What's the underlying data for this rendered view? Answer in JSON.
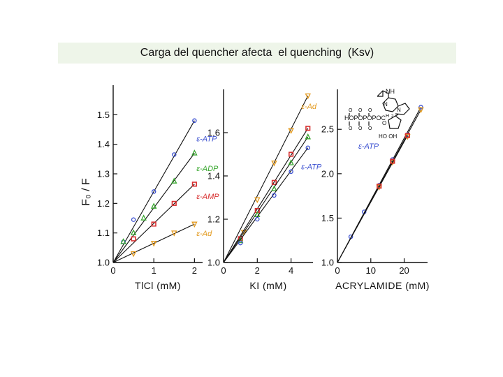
{
  "slide": {
    "title": "Carga del quencher afecta  el quenching  (Ksv)"
  },
  "y_axis_label_common": "F₀ / F",
  "chart_data": [
    {
      "type": "line",
      "panel": "left",
      "xlabel": "TlCl (mM)",
      "ylabel": "F₀ / F",
      "xlim": [
        0,
        2.2
      ],
      "ylim": [
        1.0,
        1.6
      ],
      "xticks": [
        0,
        1,
        2
      ],
      "xtick_labels": [
        "0",
        "1",
        "2"
      ],
      "yticks": [
        1.0,
        1.1,
        1.2,
        1.3,
        1.4,
        1.5
      ],
      "ytick_labels": [
        "1.0",
        "1.1",
        "1.2",
        "1.3",
        "1.4",
        "1.5"
      ],
      "series": [
        {
          "name": "ε-ATP",
          "color": "#3a4fd0",
          "marker": "circle",
          "label_at": [
            2.05,
            1.41
          ],
          "x": [
            0.25,
            0.5,
            1.0,
            1.5,
            2.0
          ],
          "y": [
            1.07,
            1.145,
            1.24,
            1.365,
            1.48
          ]
        },
        {
          "name": "ε-ADP",
          "color": "#3aa830",
          "marker": "triangle-up",
          "label_at": [
            2.05,
            1.31
          ],
          "x": [
            0.25,
            0.5,
            0.75,
            1.0,
            1.5,
            2.0
          ],
          "y": [
            1.07,
            1.1,
            1.15,
            1.19,
            1.275,
            1.37
          ]
        },
        {
          "name": "ε-AMP",
          "color": "#d83030",
          "marker": "square",
          "label_at": [
            2.05,
            1.215
          ],
          "x": [
            0.5,
            1.0,
            1.5,
            2.0
          ],
          "y": [
            1.08,
            1.13,
            1.2,
            1.265
          ]
        },
        {
          "name": "ε-Ad",
          "color": "#e39a1e",
          "marker": "triangle-down",
          "label_at": [
            2.05,
            1.09
          ],
          "x": [
            0.5,
            1.0,
            1.5,
            2.0
          ],
          "y": [
            1.03,
            1.065,
            1.1,
            1.13
          ]
        }
      ]
    },
    {
      "type": "line",
      "panel": "middle",
      "xlabel": "KI (mM)",
      "ylabel": "",
      "xlim": [
        0,
        5.3
      ],
      "ylim": [
        1.0,
        1.8
      ],
      "xticks": [
        0,
        2,
        4
      ],
      "xtick_labels": [
        "0",
        "2",
        "4"
      ],
      "yticks": [
        1.0,
        1.2,
        1.4,
        1.6
      ],
      "ytick_labels": [
        "1.0",
        "1.2",
        "1.4",
        "1.6"
      ],
      "series": [
        {
          "name": "ε-Ad",
          "color": "#e39a1e",
          "marker": "triangle-down",
          "label_at": [
            4.6,
            1.71
          ],
          "x": [
            1.2,
            2.0,
            3.0,
            4.0,
            5.0
          ],
          "y": [
            1.14,
            1.29,
            1.46,
            1.61,
            1.77
          ]
        },
        {
          "name": "",
          "color": "#d83030",
          "marker": "square",
          "label_at": null,
          "x": [
            1.0,
            2.0,
            3.0,
            4.0,
            5.0
          ],
          "y": [
            1.11,
            1.24,
            1.37,
            1.5,
            1.62
          ]
        },
        {
          "name": "",
          "color": "#3aa830",
          "marker": "triangle-up",
          "label_at": null,
          "x": [
            1.0,
            2.0,
            3.0,
            4.0,
            5.0
          ],
          "y": [
            1.1,
            1.22,
            1.34,
            1.46,
            1.58
          ]
        },
        {
          "name": "ε-ATP",
          "color": "#3a4fd0",
          "marker": "circle",
          "label_at": [
            4.6,
            1.43
          ],
          "x": [
            1.0,
            2.0,
            3.0,
            4.0,
            5.0
          ],
          "y": [
            1.09,
            1.2,
            1.31,
            1.42,
            1.53
          ]
        }
      ]
    },
    {
      "type": "line",
      "panel": "right",
      "xlabel": "ACRYLAMIDE (mM)",
      "ylabel": "",
      "xlim": [
        0,
        27
      ],
      "ylim": [
        1.0,
        2.95
      ],
      "xticks": [
        0,
        10,
        20
      ],
      "xtick_labels": [
        "0",
        "10",
        "20"
      ],
      "yticks": [
        1.0,
        1.5,
        2.0,
        2.5
      ],
      "ytick_labels": [
        "1.0",
        "1.5",
        "2.0",
        "2.5"
      ],
      "legend_label": "ε-ATP",
      "series": [
        {
          "name": "",
          "color": "#3a4fd0",
          "marker": "circle",
          "label_at": null,
          "x": [
            4.0,
            8.0,
            12.5,
            16.5,
            21.0,
            25.0
          ],
          "y": [
            1.29,
            1.57,
            1.87,
            2.16,
            2.44,
            2.75
          ]
        },
        {
          "name": "",
          "color": "#e39a1e",
          "marker": "triangle-down",
          "label_at": null,
          "x": [
            12.5,
            16.5,
            21.0,
            25.0
          ],
          "y": [
            1.85,
            2.13,
            2.42,
            2.72
          ]
        },
        {
          "name": "",
          "color": "#d83030",
          "marker": "square",
          "label_at": null,
          "x": [
            12.5,
            16.5,
            21.0
          ],
          "y": [
            1.86,
            2.14,
            2.43
          ]
        }
      ],
      "inset_structure": {
        "groups": [
          "HOPOPOPOC",
          "HO OH",
          "NH",
          "N",
          "N",
          "O",
          "H",
          "2"
        ]
      }
    }
  ]
}
